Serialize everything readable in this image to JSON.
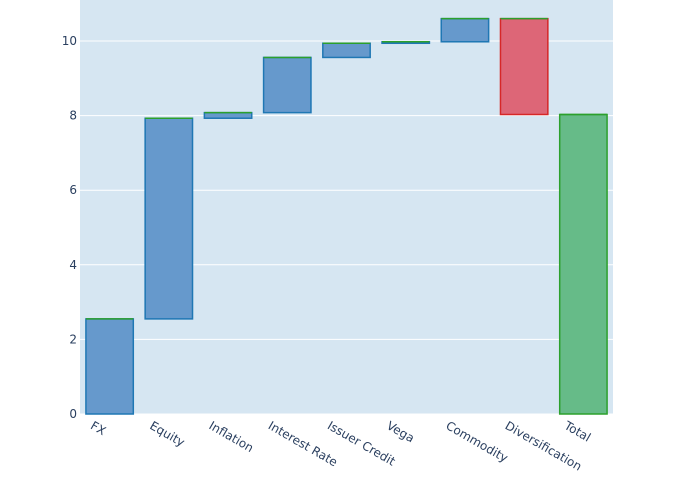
{
  "chart_data": {
    "type": "waterfall",
    "title": "",
    "xlabel": "",
    "ylabel": "",
    "ylim": [
      0,
      11.1
    ],
    "yticks": [
      0,
      2,
      4,
      6,
      8,
      10
    ],
    "grid": true,
    "categories": [
      "FX",
      "Equity",
      "Inflation",
      "Interest Rate",
      "Issuer Credit",
      "Vega",
      "Commodity",
      "Diversification",
      "Total"
    ],
    "measures": [
      "relative",
      "relative",
      "relative",
      "relative",
      "relative",
      "relative",
      "relative",
      "relative",
      "total"
    ],
    "values": [
      2.55,
      5.38,
      0.15,
      1.48,
      0.38,
      0.04,
      0.62,
      -2.57,
      8.03
    ],
    "colors": {
      "increasing": "#6699cc",
      "increasing_border": "#1f77b4",
      "decreasing": "#dd6677",
      "decreasing_border": "#d62728",
      "total": "#66bb88",
      "total_border": "#2ca02c",
      "plot_background": "#d6e6f2",
      "tick_text": "#2a3f5f"
    }
  }
}
